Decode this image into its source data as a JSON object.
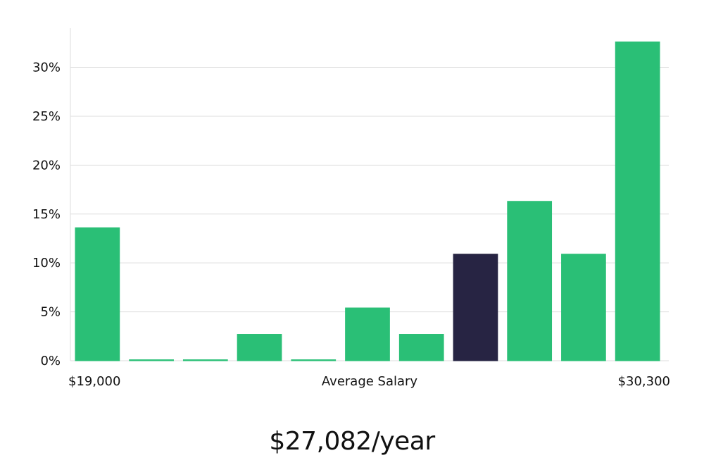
{
  "chart_data": {
    "type": "bar",
    "xlabel": "Average Salary",
    "x_range_labels": [
      "$19,000",
      "$30,300"
    ],
    "y_tick_labels": [
      "0%",
      "5%",
      "10%",
      "15%",
      "20%",
      "25%",
      "30%"
    ],
    "ylim": [
      0,
      34
    ],
    "values": [
      13.6,
      0.1,
      0.1,
      2.7,
      0.1,
      5.4,
      2.7,
      10.9,
      16.3,
      10.9,
      32.6
    ],
    "highlight_index": 7,
    "grid": true,
    "colors": {
      "bar": "#2abf76",
      "highlight": "#272443",
      "grid": "#dddddd",
      "axis": "#dddddd"
    }
  },
  "headline": "$27,082/year"
}
